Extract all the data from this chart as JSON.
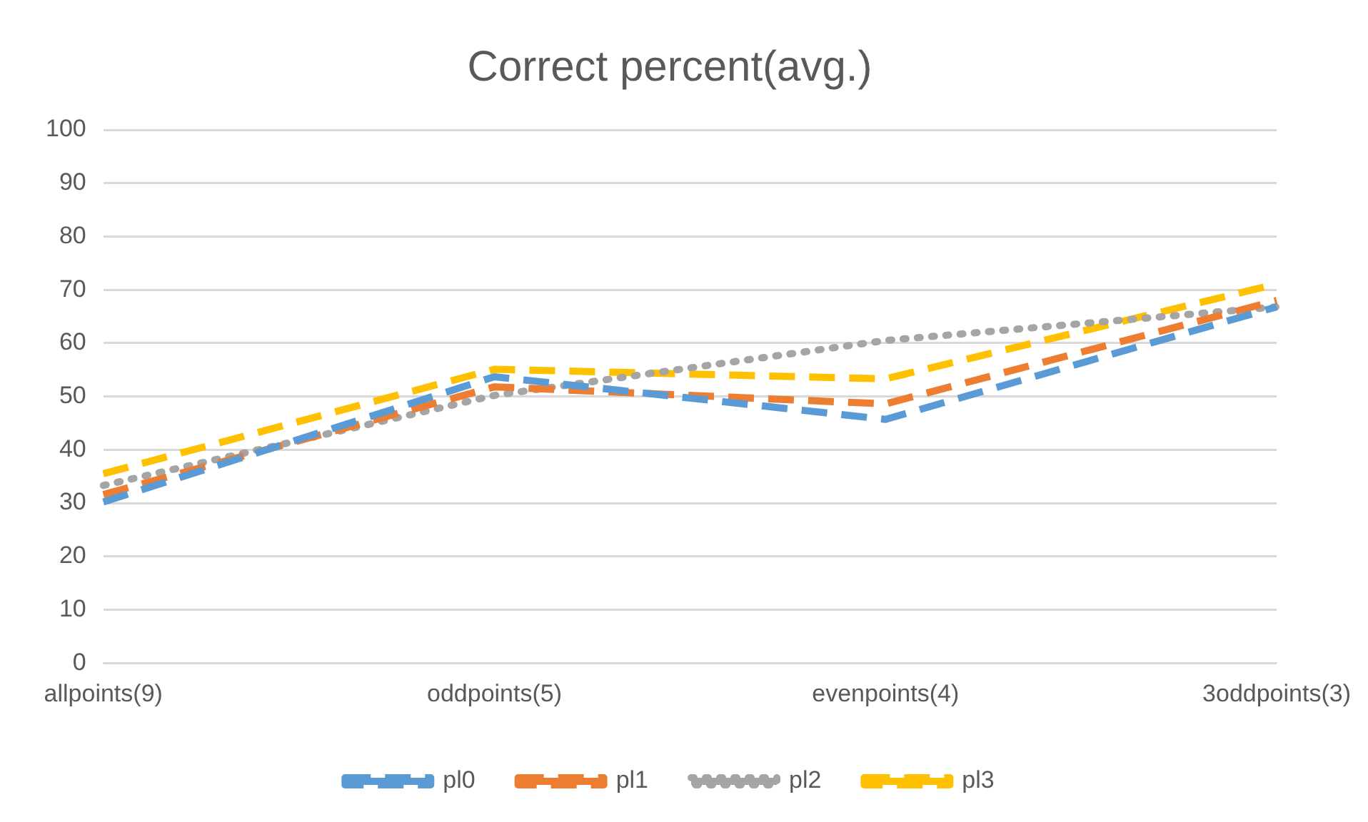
{
  "chart_data": {
    "type": "line",
    "title": "Correct percent(avg.)",
    "categories": [
      "allpoints(9)",
      "oddpoints(5)",
      "evenpoints(4)",
      "3oddpoints(3)"
    ],
    "series": [
      {
        "name": "pl0",
        "color": "#5b9bd5",
        "line_style": "dashed",
        "values": [
          30.2,
          53.7,
          45.7,
          66.8
        ]
      },
      {
        "name": "pl1",
        "color": "#ed7d31",
        "line_style": "dashed",
        "values": [
          31.6,
          51.8,
          48.6,
          68
        ]
      },
      {
        "name": "pl2",
        "color": "#a5a5a5",
        "line_style": "dotted",
        "values": [
          33.3,
          50.2,
          60.5,
          66.8
        ]
      },
      {
        "name": "pl3",
        "color": "#ffc000",
        "line_style": "dashed",
        "values": [
          35.5,
          55.1,
          53.3,
          71.1
        ]
      }
    ],
    "ylim": [
      0,
      100
    ],
    "yticks": [
      0,
      10,
      20,
      30,
      40,
      50,
      60,
      70,
      80,
      90,
      100
    ],
    "grid": "y",
    "legend": "bottom",
    "marker": "none"
  }
}
